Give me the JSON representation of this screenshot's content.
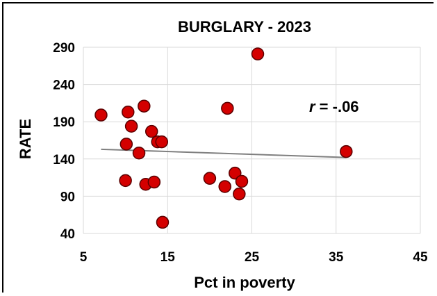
{
  "chart_data": {
    "type": "scatter",
    "title": "BURGLARY - 2023",
    "xlabel": "Pct in poverty",
    "ylabel": "RATE",
    "xlim": [
      5,
      45
    ],
    "ylim": [
      40,
      290
    ],
    "xticks": [
      5,
      15,
      25,
      35,
      45
    ],
    "yticks": [
      40,
      90,
      140,
      190,
      240,
      290
    ],
    "grid": true,
    "marker_color": "#d40000",
    "marker_edge": "#5a0000",
    "trendline_color": "#7f7f7f",
    "points": [
      {
        "x": 7.1,
        "y": 199
      },
      {
        "x": 10.3,
        "y": 203
      },
      {
        "x": 10.7,
        "y": 184
      },
      {
        "x": 12.2,
        "y": 211
      },
      {
        "x": 13.1,
        "y": 177
      },
      {
        "x": 10.1,
        "y": 160
      },
      {
        "x": 13.8,
        "y": 163
      },
      {
        "x": 14.3,
        "y": 163
      },
      {
        "x": 11.6,
        "y": 148
      },
      {
        "x": 10.0,
        "y": 111
      },
      {
        "x": 12.4,
        "y": 106
      },
      {
        "x": 13.4,
        "y": 109
      },
      {
        "x": 14.4,
        "y": 55
      },
      {
        "x": 20.0,
        "y": 114
      },
      {
        "x": 21.8,
        "y": 103
      },
      {
        "x": 22.1,
        "y": 208
      },
      {
        "x": 23.0,
        "y": 121
      },
      {
        "x": 23.8,
        "y": 110
      },
      {
        "x": 23.5,
        "y": 93
      },
      {
        "x": 25.7,
        "y": 281
      },
      {
        "x": 36.2,
        "y": 150
      }
    ],
    "trendline": {
      "x": [
        7.1,
        36.2
      ],
      "y": [
        153,
        142
      ]
    },
    "annotation": {
      "r_symbol": "r",
      "r_value": " = -.06"
    }
  }
}
